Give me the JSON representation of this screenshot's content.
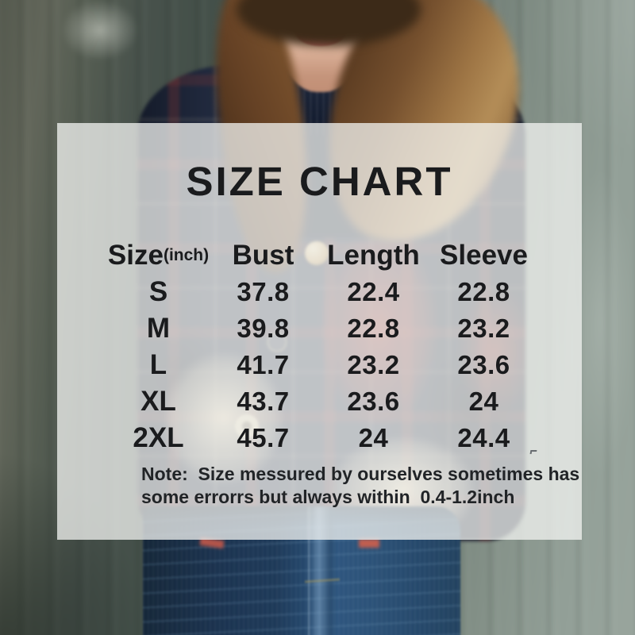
{
  "colors": {
    "overlay_tint": "#f4f5f3",
    "text": "#1a1b1d",
    "plaid_navy": "#232c42",
    "plaid_red": "#a4372f",
    "plaid_cream": "#e8d9b8",
    "denim": "#24466a",
    "wall_dark": "#47514b",
    "wall_light": "#9aa69e",
    "hair": "#8a5e33",
    "skin": "#e9c3ab",
    "lips": "#c97a72"
  },
  "chart_data": {
    "type": "table",
    "title": "SIZE CHART",
    "unit_label": "(inch)",
    "columns": [
      "Size",
      "Bust",
      "Length",
      "Sleeve"
    ],
    "rows": [
      [
        "S",
        "37.8",
        "22.4",
        "22.8"
      ],
      [
        "M",
        "39.8",
        "22.8",
        "23.2"
      ],
      [
        "L",
        "41.7",
        "23.2",
        "23.6"
      ],
      [
        "XL",
        "43.7",
        "23.6",
        "24"
      ],
      [
        "2XL",
        "45.7",
        "24",
        "24.4"
      ]
    ],
    "note_lines": [
      "Note:  Size messured by ourselves sometimes has",
      "some errorrs but always within  0.4-1.2inch"
    ]
  }
}
